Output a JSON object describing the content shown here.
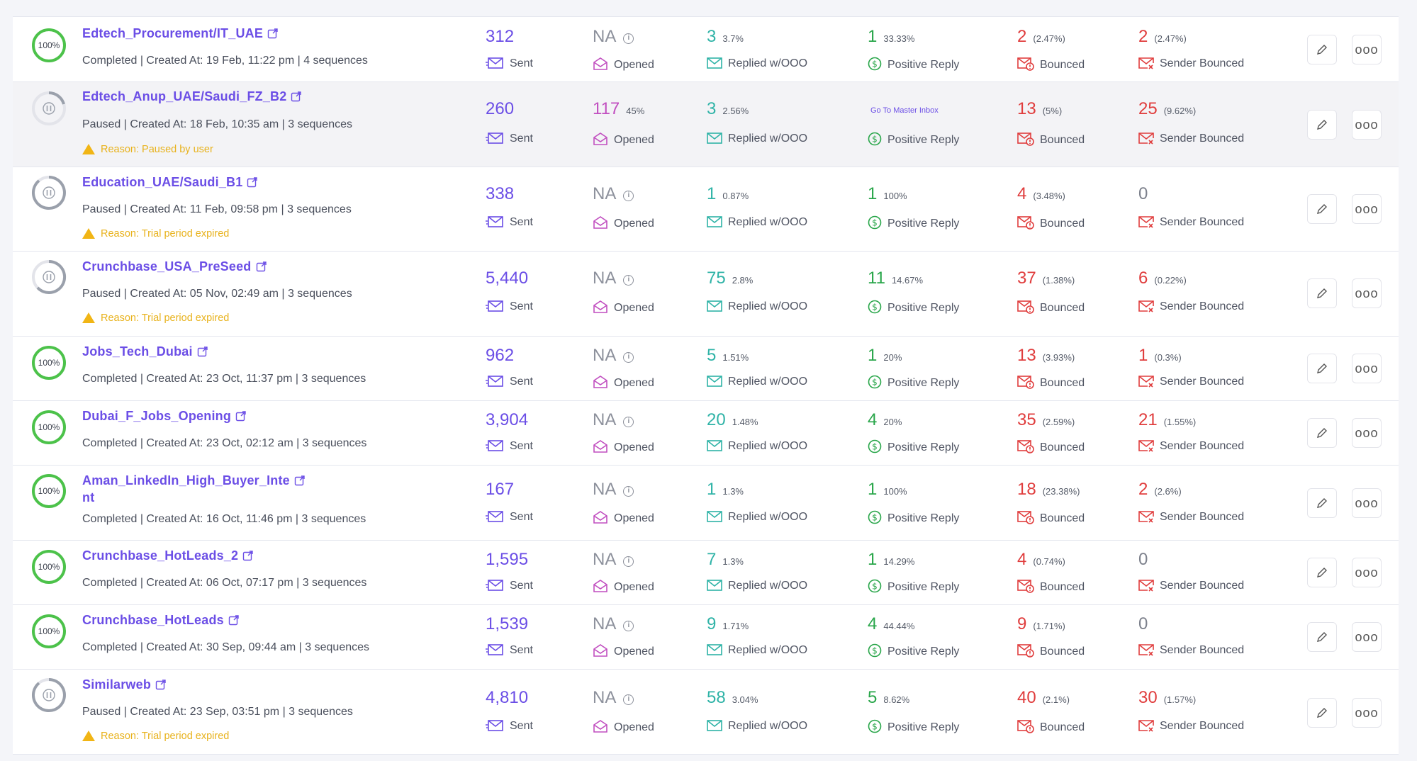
{
  "labels": {
    "sent": "Sent",
    "opened": "Opened",
    "replied": "Replied w/OOO",
    "positive": "Positive Reply",
    "bounced": "Bounced",
    "sender_bounced": "Sender Bounced",
    "na": "NA",
    "go_master": "Go To Master Inbox",
    "more": "ooo"
  },
  "colors": {
    "accent": "#6b4ee6",
    "completed_ring": "#4cc24a",
    "paused_ring": "#9aa0ab",
    "warning": "#e8b21c",
    "bounce": "#e03d3d",
    "reply": "#2fb3a7",
    "positive": "#29a64a",
    "opened": "#c14fc0"
  },
  "icons": [
    "external-link-icon",
    "warning-icon",
    "info-icon",
    "sent-mail-icon",
    "opened-mail-icon",
    "replied-mail-icon",
    "dollar-icon",
    "bounced-mail-icon",
    "sender-bounced-mail-icon",
    "pencil-icon",
    "more-icon"
  ],
  "campaigns": [
    {
      "name": "Edtech_Procurement/IT_UAE",
      "status_pct": "100%",
      "status": "completed",
      "meta": "Completed | Created At: 19 Feb, 11:22 pm | 4 sequences",
      "reason": "",
      "sent": "312",
      "opened": "NA",
      "opened_pct": "",
      "replied": "3",
      "replied_pct": "3.7%",
      "positive": "1",
      "positive_pct": "33.33%",
      "bounced": "2",
      "bounced_pct": "(2.47%)",
      "sender_bounced": "2",
      "sender_bounced_pct": "(2.47%)"
    },
    {
      "name": "Edtech_Anup_UAE/Saudi_FZ_B2",
      "status_pct": "",
      "status": "paused",
      "progress": 0.35,
      "meta": "Paused | Created At: 18 Feb, 10:35 am | 3 sequences",
      "reason": "Reason: Paused by user",
      "sent": "260",
      "opened": "117",
      "opened_pct": "45%",
      "replied": "3",
      "replied_pct": "2.56%",
      "positive": "",
      "positive_pct": "",
      "bounced": "13",
      "bounced_pct": "(5%)",
      "sender_bounced": "25",
      "sender_bounced_pct": "(9.62%)"
    },
    {
      "name": "Education_UAE/Saudi_B1",
      "status_pct": "",
      "status": "paused",
      "progress": 0.85,
      "meta": "Paused | Created At: 11 Feb, 09:58 pm | 3 sequences",
      "reason": "Reason: Trial period expired",
      "sent": "338",
      "opened": "NA",
      "opened_pct": "",
      "replied": "1",
      "replied_pct": "0.87%",
      "positive": "1",
      "positive_pct": "100%",
      "bounced": "4",
      "bounced_pct": "(3.48%)",
      "sender_bounced": "0",
      "sender_bounced_pct": ""
    },
    {
      "name": "Crunchbase_USA_PreSeed",
      "status_pct": "",
      "status": "paused",
      "progress": 0.6,
      "meta": "Paused | Created At: 05 Nov, 02:49 am | 3 sequences",
      "reason": "Reason: Trial period expired",
      "sent": "5,440",
      "opened": "NA",
      "opened_pct": "",
      "replied": "75",
      "replied_pct": "2.8%",
      "positive": "11",
      "positive_pct": "14.67%",
      "bounced": "37",
      "bounced_pct": "(1.38%)",
      "sender_bounced": "6",
      "sender_bounced_pct": "(0.22%)"
    },
    {
      "name": "Jobs_Tech_Dubai",
      "status_pct": "100%",
      "status": "completed",
      "meta": "Completed | Created At: 23 Oct, 11:37 pm | 3 sequences",
      "reason": "",
      "sent": "962",
      "opened": "NA",
      "opened_pct": "",
      "replied": "5",
      "replied_pct": "1.51%",
      "positive": "1",
      "positive_pct": "20%",
      "bounced": "13",
      "bounced_pct": "(3.93%)",
      "sender_bounced": "1",
      "sender_bounced_pct": "(0.3%)"
    },
    {
      "name": "Dubai_F_Jobs_Opening",
      "status_pct": "100%",
      "status": "completed",
      "meta": "Completed | Created At: 23 Oct, 02:12 am | 3 sequences",
      "reason": "",
      "sent": "3,904",
      "opened": "NA",
      "opened_pct": "",
      "replied": "20",
      "replied_pct": "1.48%",
      "positive": "4",
      "positive_pct": "20%",
      "bounced": "35",
      "bounced_pct": "(2.59%)",
      "sender_bounced": "21",
      "sender_bounced_pct": "(1.55%)"
    },
    {
      "name": "Aman_LinkedIn_High_Buyer_Inte",
      "name_cont": "nt",
      "status_pct": "100%",
      "status": "completed",
      "meta": "Completed | Created At: 16 Oct, 11:46 pm | 3 sequences",
      "reason": "",
      "sent": "167",
      "opened": "NA",
      "opened_pct": "",
      "replied": "1",
      "replied_pct": "1.3%",
      "positive": "1",
      "positive_pct": "100%",
      "bounced": "18",
      "bounced_pct": "(23.38%)",
      "sender_bounced": "2",
      "sender_bounced_pct": "(2.6%)"
    },
    {
      "name": "Crunchbase_HotLeads_2",
      "status_pct": "100%",
      "status": "completed",
      "meta": "Completed | Created At: 06 Oct, 07:17 pm | 3 sequences",
      "reason": "",
      "sent": "1,595",
      "opened": "NA",
      "opened_pct": "",
      "replied": "7",
      "replied_pct": "1.3%",
      "positive": "1",
      "positive_pct": "14.29%",
      "bounced": "4",
      "bounced_pct": "(0.74%)",
      "sender_bounced": "0",
      "sender_bounced_pct": ""
    },
    {
      "name": "Crunchbase_HotLeads",
      "status_pct": "100%",
      "status": "completed",
      "meta": "Completed | Created At: 30 Sep, 09:44 am | 3 sequences",
      "reason": "",
      "sent": "1,539",
      "opened": "NA",
      "opened_pct": "",
      "replied": "9",
      "replied_pct": "1.71%",
      "positive": "4",
      "positive_pct": "44.44%",
      "bounced": "9",
      "bounced_pct": "(1.71%)",
      "sender_bounced": "0",
      "sender_bounced_pct": ""
    },
    {
      "name": "Similarweb",
      "status_pct": "",
      "status": "paused",
      "progress": 0.85,
      "meta": "Paused | Created At: 23 Sep, 03:51 pm | 3 sequences",
      "reason": "Reason: Trial period expired",
      "sent": "4,810",
      "opened": "NA",
      "opened_pct": "",
      "replied": "58",
      "replied_pct": "3.04%",
      "positive": "5",
      "positive_pct": "8.62%",
      "bounced": "40",
      "bounced_pct": "(2.1%)",
      "sender_bounced": "30",
      "sender_bounced_pct": "(1.57%)"
    }
  ]
}
